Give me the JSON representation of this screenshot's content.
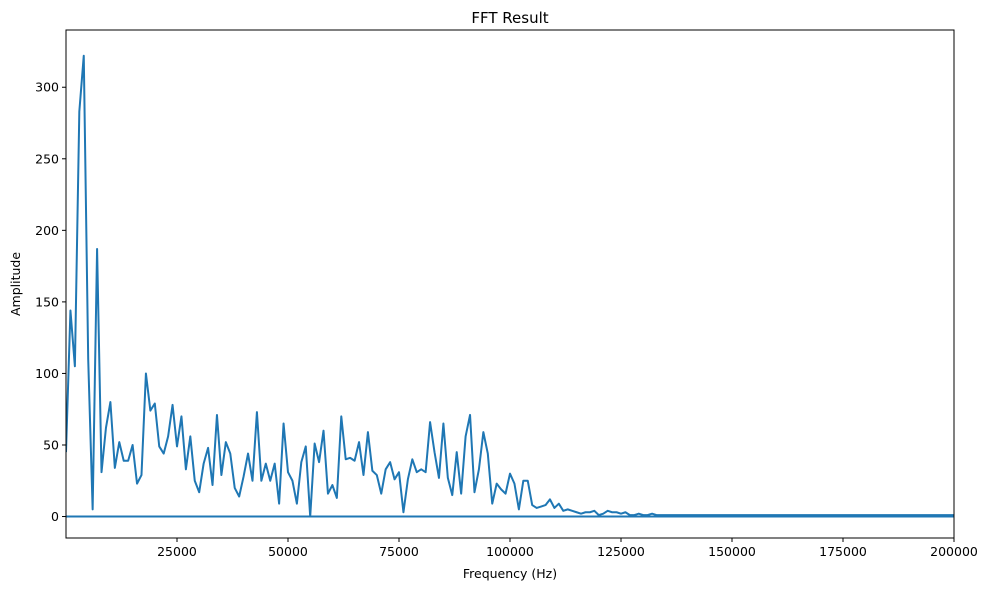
{
  "chart_data": {
    "type": "line",
    "title": "FFT Result",
    "xlabel": "Frequency (Hz)",
    "ylabel": "Amplitude",
    "xlim": [
      0,
      200000
    ],
    "ylim": [
      -15,
      340
    ],
    "grid": false,
    "x_ticks": [
      {
        "value": 25000,
        "label": "25000"
      },
      {
        "value": 50000,
        "label": "50000"
      },
      {
        "value": 75000,
        "label": "75000"
      },
      {
        "value": 100000,
        "label": "100000"
      },
      {
        "value": 125000,
        "label": "125000"
      },
      {
        "value": 150000,
        "label": "150000"
      },
      {
        "value": 175000,
        "label": "175000"
      },
      {
        "value": 200000,
        "label": "200000"
      }
    ],
    "y_ticks": [
      {
        "value": 0,
        "label": "0"
      },
      {
        "value": 50,
        "label": "50"
      },
      {
        "value": 100,
        "label": "100"
      },
      {
        "value": 150,
        "label": "150"
      },
      {
        "value": 200,
        "label": "200"
      },
      {
        "value": 250,
        "label": "250"
      },
      {
        "value": 300,
        "label": "300"
      }
    ],
    "series": [
      {
        "color": "#1f77b4",
        "x": [
          0,
          1000,
          2000,
          3000,
          4000,
          5000,
          6000,
          7000,
          8000,
          9000,
          10000,
          11000,
          12000,
          13000,
          14000,
          15000,
          16000,
          17000,
          18000,
          19000,
          20000,
          21000,
          22000,
          23000,
          24000,
          25000,
          26000,
          27000,
          28000,
          29000,
          30000,
          31000,
          32000,
          33000,
          34000,
          35000,
          36000,
          37000,
          38000,
          39000,
          40000,
          41000,
          42000,
          43000,
          44000,
          45000,
          46000,
          47000,
          48000,
          49000,
          50000,
          51000,
          52000,
          53000,
          54000,
          55000,
          56000,
          57000,
          58000,
          59000,
          60000,
          61000,
          62000,
          63000,
          64000,
          65000,
          66000,
          67000,
          68000,
          69000,
          70000,
          71000,
          72000,
          73000,
          74000,
          75000,
          76000,
          77000,
          78000,
          79000,
          80000,
          81000,
          82000,
          83000,
          84000,
          85000,
          86000,
          87000,
          88000,
          89000,
          90000,
          91000,
          92000,
          93000,
          94000,
          95000,
          96000,
          97000,
          98000,
          99000,
          100000,
          101000,
          102000,
          103000,
          104000,
          105000,
          106000,
          107000,
          108000,
          109000,
          110000,
          111000,
          112000,
          113000,
          114000,
          115000,
          116000,
          117000,
          118000,
          119000,
          120000,
          121000,
          122000,
          123000,
          124000,
          125000,
          126000,
          127000,
          128000,
          129000,
          130000,
          131000,
          132000,
          133000,
          134000,
          135000,
          136000,
          137000,
          138000,
          139000,
          140000,
          141000,
          142000,
          143000,
          144000,
          145000,
          146000,
          147000,
          148000,
          149000,
          150000,
          151000,
          152000,
          153000,
          154000,
          155000,
          156000,
          157000,
          158000,
          159000,
          160000,
          161000,
          162000,
          163000,
          164000,
          165000,
          166000,
          167000,
          168000,
          169000,
          170000,
          171000,
          172000,
          173000,
          174000,
          175000,
          176000,
          177000,
          178000,
          179000,
          180000,
          181000,
          182000,
          183000,
          184000,
          185000,
          186000,
          187000,
          188000,
          189000,
          190000,
          191000,
          192000,
          193000,
          194000,
          195000,
          196000,
          197000,
          198000,
          199000,
          200000,
          200000,
          0
        ],
        "y": [
          45,
          144,
          105,
          283,
          322,
          110,
          5,
          187,
          31,
          62,
          80,
          34,
          52,
          39,
          39,
          50,
          23,
          29,
          100,
          74,
          79,
          49,
          44,
          56,
          78,
          49,
          70,
          33,
          56,
          25,
          17,
          37,
          48,
          22,
          71,
          29,
          52,
          44,
          20,
          14,
          28,
          44,
          25,
          73,
          25,
          37,
          25,
          37,
          9,
          65,
          31,
          25,
          9,
          38,
          49,
          0,
          51,
          38,
          60,
          16,
          22,
          13,
          70,
          40,
          41,
          39,
          52,
          29,
          59,
          32,
          29,
          16,
          33,
          38,
          26,
          31,
          3,
          26,
          40,
          31,
          33,
          31,
          66,
          45,
          27,
          65,
          27,
          15,
          45,
          16,
          56,
          71,
          17,
          33,
          59,
          44,
          9,
          23,
          19,
          16,
          30,
          23,
          5,
          25,
          25,
          8,
          6,
          7,
          8,
          12,
          6,
          9,
          4,
          5,
          4,
          3,
          2,
          3,
          3,
          4,
          1,
          2,
          4,
          3,
          3,
          2,
          3,
          1,
          1,
          2,
          1,
          1,
          2,
          1,
          1,
          1,
          1,
          1,
          1,
          1,
          1,
          1,
          1,
          1,
          1,
          1,
          1,
          1,
          1,
          1,
          1,
          1,
          1,
          1,
          1,
          1,
          1,
          1,
          1,
          1,
          1,
          1,
          1,
          1,
          1,
          1,
          1,
          1,
          1,
          1,
          1,
          1,
          1,
          1,
          1,
          1,
          1,
          1,
          1,
          1,
          1,
          1,
          1,
          1,
          1,
          1,
          1,
          1,
          1,
          1,
          1,
          1,
          1,
          1,
          1,
          1,
          1,
          1,
          1,
          1,
          1,
          0,
          0
        ]
      }
    ]
  }
}
